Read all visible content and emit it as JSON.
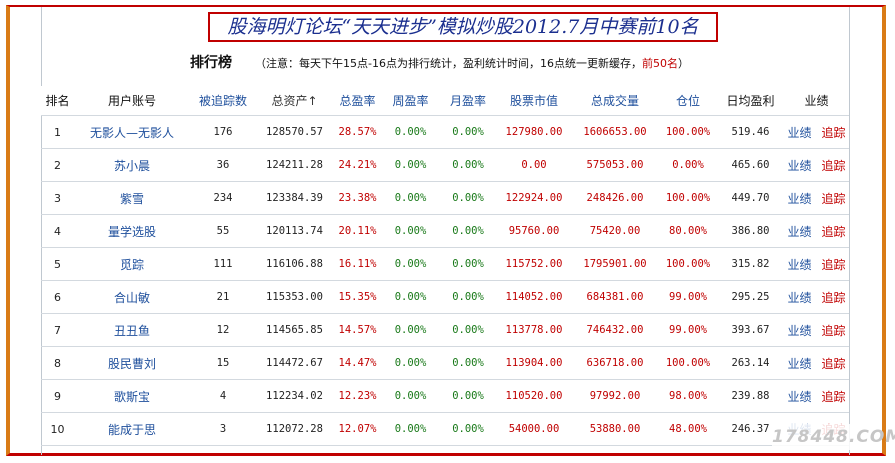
{
  "banner_title": "股海明灯论坛“天天进步”模拟炒股2012.7月中赛前10名",
  "ranking": {
    "heading": "排行榜",
    "note_main": "（注意：每天下午15点-16点为排行统计，盈利统计时间，16点统一更新缓存，",
    "note_highlight": "前50名",
    "note_end": "）"
  },
  "table": {
    "headers": [
      "排名",
      "用户账号",
      "被追踪数",
      "总资产↑",
      "总盈率",
      "周盈率",
      "月盈率",
      "股票市值",
      "总成交量",
      "仓位",
      "日均盈利",
      "业绩"
    ],
    "rows": [
      {
        "rank": "1",
        "user": "无影人—无影人",
        "followers": "176",
        "assets": "128570.57",
        "total_rate": "28.57%",
        "week_rate": "0.00%",
        "month_rate": "0.00%",
        "stock_value": "127980.00",
        "volume": "1606653.00",
        "position": "100.00%",
        "daily_profit": "519.46",
        "perf": "业绩",
        "track": "追踪"
      },
      {
        "rank": "2",
        "user": "苏小晨",
        "followers": "36",
        "assets": "124211.28",
        "total_rate": "24.21%",
        "week_rate": "0.00%",
        "month_rate": "0.00%",
        "stock_value": "0.00",
        "volume": "575053.00",
        "position": "0.00%",
        "daily_profit": "465.60",
        "perf": "业绩",
        "track": "追踪"
      },
      {
        "rank": "3",
        "user": "紫雪",
        "followers": "234",
        "assets": "123384.39",
        "total_rate": "23.38%",
        "week_rate": "0.00%",
        "month_rate": "0.00%",
        "stock_value": "122924.00",
        "volume": "248426.00",
        "position": "100.00%",
        "daily_profit": "449.70",
        "perf": "业绩",
        "track": "追踪"
      },
      {
        "rank": "4",
        "user": "量学选股",
        "followers": "55",
        "assets": "120113.74",
        "total_rate": "20.11%",
        "week_rate": "0.00%",
        "month_rate": "0.00%",
        "stock_value": "95760.00",
        "volume": "75420.00",
        "position": "80.00%",
        "daily_profit": "386.80",
        "perf": "业绩",
        "track": "追踪"
      },
      {
        "rank": "5",
        "user": "觅踪",
        "followers": "111",
        "assets": "116106.88",
        "total_rate": "16.11%",
        "week_rate": "0.00%",
        "month_rate": "0.00%",
        "stock_value": "115752.00",
        "volume": "1795901.00",
        "position": "100.00%",
        "daily_profit": "315.82",
        "perf": "业绩",
        "track": "追踪"
      },
      {
        "rank": "6",
        "user": "合山敏",
        "followers": "21",
        "assets": "115353.00",
        "total_rate": "15.35%",
        "week_rate": "0.00%",
        "month_rate": "0.00%",
        "stock_value": "114052.00",
        "volume": "684381.00",
        "position": "99.00%",
        "daily_profit": "295.25",
        "perf": "业绩",
        "track": "追踪"
      },
      {
        "rank": "7",
        "user": "丑丑鱼",
        "followers": "12",
        "assets": "114565.85",
        "total_rate": "14.57%",
        "week_rate": "0.00%",
        "month_rate": "0.00%",
        "stock_value": "113778.00",
        "volume": "746432.00",
        "position": "99.00%",
        "daily_profit": "393.67",
        "perf": "业绩",
        "track": "追踪"
      },
      {
        "rank": "8",
        "user": "股民曹刘",
        "followers": "15",
        "assets": "114472.67",
        "total_rate": "14.47%",
        "week_rate": "0.00%",
        "month_rate": "0.00%",
        "stock_value": "113904.00",
        "volume": "636718.00",
        "position": "100.00%",
        "daily_profit": "263.14",
        "perf": "业绩",
        "track": "追踪"
      },
      {
        "rank": "9",
        "user": "歌斯宝",
        "followers": "4",
        "assets": "112234.02",
        "total_rate": "12.23%",
        "week_rate": "0.00%",
        "month_rate": "0.00%",
        "stock_value": "110520.00",
        "volume": "97992.00",
        "position": "98.00%",
        "daily_profit": "239.88",
        "perf": "业绩",
        "track": "追踪"
      },
      {
        "rank": "10",
        "user": "能成于思",
        "followers": "3",
        "assets": "112072.28",
        "total_rate": "12.07%",
        "week_rate": "0.00%",
        "month_rate": "0.00%",
        "stock_value": "54000.00",
        "volume": "53880.00",
        "position": "48.00%",
        "daily_profit": "246.37",
        "perf": "业绩",
        "track": "追踪"
      }
    ]
  },
  "watermark": "178448.COM",
  "colors": {
    "frame_orange": "#d97b16",
    "frame_red": "#c00000",
    "title_blue": "#1b2f8f",
    "link_blue": "#1e4f9c",
    "positive_red": "#c00000",
    "zero_green": "#1a7a1a"
  }
}
